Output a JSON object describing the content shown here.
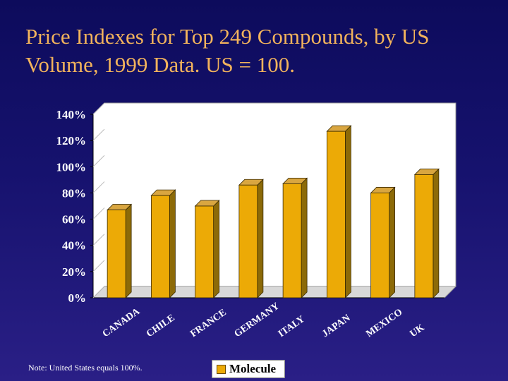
{
  "slide": {
    "title": "Price Indexes for Top 249 Compounds, by US Volume, 1999 Data. US = 100.",
    "note": "Note: United States equals 100%."
  },
  "colors": {
    "title": "#f2b35c",
    "bar_front": "#ecaa06",
    "bar_side": "#8c6a08",
    "bar_top": "#d9a640",
    "plot_bg": "#ffffff",
    "label_text": "#ffffff"
  },
  "chart_data": {
    "type": "bar",
    "title": "",
    "xlabel": "",
    "ylabel": "",
    "categories": [
      "CANADA",
      "CHILE",
      "FRANCE",
      "GERMANY",
      "ITALY",
      "JAPAN",
      "MEXICO",
      "UK"
    ],
    "series": [
      {
        "name": "Molecule",
        "values": [
          67,
          78,
          70,
          86,
          87,
          127,
          80,
          94
        ],
        "data_labels": [
          "67%",
          "78%",
          "70%",
          "86%",
          "87%",
          "127%",
          "80%",
          "94%"
        ]
      }
    ],
    "ylim": [
      0,
      140
    ],
    "yticks": [
      0,
      20,
      40,
      60,
      80,
      100,
      120,
      140
    ],
    "ytick_labels": [
      "0%",
      "20%",
      "40%",
      "60%",
      "80%",
      "100%",
      "120%",
      "140%"
    ],
    "grid": false,
    "legend": {
      "position": "bottom",
      "entries": [
        "Molecule"
      ]
    }
  }
}
